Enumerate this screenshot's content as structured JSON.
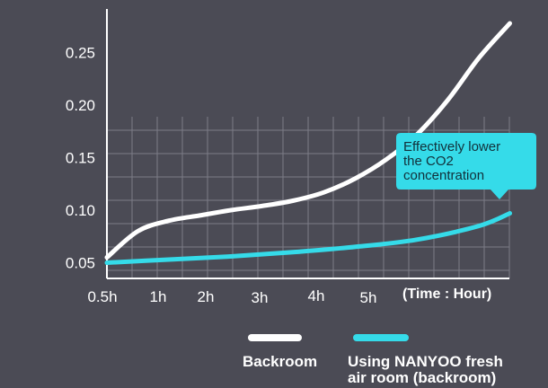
{
  "chart_data": {
    "type": "line",
    "title": "",
    "x_unit_label": "(Time : Hour)",
    "x_categories": [
      "0.5h",
      "1h",
      "2h",
      "3h",
      "4h",
      "5h"
    ],
    "y_ticks": [
      "0.05",
      "0.10",
      "0.15",
      "0.20",
      "0.25"
    ],
    "ylim": [
      0.035,
      0.29
    ],
    "grid": true,
    "legend_position": "bottom",
    "series": [
      {
        "name": "Backroom",
        "color": "#ffffff",
        "points": [
          [
            0,
            0.055
          ],
          [
            0.5,
            0.08
          ],
          [
            1,
            0.09
          ],
          [
            1.5,
            0.095
          ],
          [
            2,
            0.1
          ],
          [
            2.5,
            0.104
          ],
          [
            3,
            0.109
          ],
          [
            3.5,
            0.117
          ],
          [
            4,
            0.13
          ],
          [
            4.5,
            0.148
          ],
          [
            5,
            0.172
          ],
          [
            5.5,
            0.205
          ],
          [
            6,
            0.245
          ],
          [
            6.5,
            0.278
          ]
        ]
      },
      {
        "name": "Using NANYOO fresh air room  (backroom)",
        "color": "#35dbe9",
        "points": [
          [
            0,
            0.05
          ],
          [
            1,
            0.053
          ],
          [
            2,
            0.056
          ],
          [
            3,
            0.06
          ],
          [
            4,
            0.065
          ],
          [
            5,
            0.072
          ],
          [
            6,
            0.085
          ],
          [
            6.5,
            0.097
          ]
        ]
      }
    ],
    "annotation": {
      "lines": [
        "Effectively lower",
        "the CO2",
        "concentration"
      ],
      "color": "#35dbe9"
    }
  },
  "legend": {
    "items": [
      {
        "lines": [
          "Backroom"
        ],
        "color": "#ffffff"
      },
      {
        "lines": [
          "Using NANYOO fresh",
          "air room  (backroom)"
        ],
        "color": "#35dbe9"
      }
    ]
  }
}
